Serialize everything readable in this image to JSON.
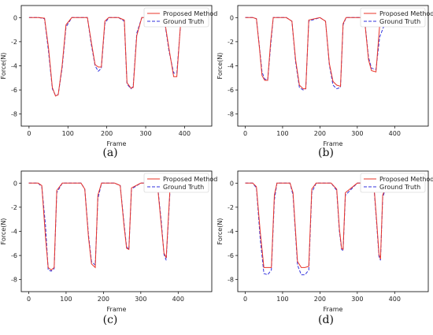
{
  "chart_data": [
    {
      "type": "line",
      "caption": "(a)",
      "xlabel": "Frame",
      "ylabel": "Force(N)",
      "xlim": [
        -20,
        470
      ],
      "ylim": [
        -9,
        1
      ],
      "xticks": [
        0,
        100,
        200,
        300,
        400
      ],
      "yticks": [
        0,
        -2,
        -4,
        -6,
        -8
      ],
      "legend": "top-right",
      "series": [
        {
          "name": "Proposed Method",
          "color": "#e8342a",
          "dash": false,
          "x": [
            0,
            25,
            40,
            50,
            60,
            68,
            75,
            85,
            95,
            110,
            130,
            150,
            160,
            170,
            178,
            186,
            195,
            205,
            230,
            245,
            252,
            262,
            268,
            277,
            290,
            310,
            330,
            350,
            360,
            372,
            380,
            390,
            420,
            450
          ],
          "y": [
            0,
            0,
            -0.05,
            -2.5,
            -5.8,
            -6.5,
            -6.4,
            -4,
            -0.6,
            0,
            0,
            0,
            -2.0,
            -3.9,
            -4.1,
            -4.1,
            -0.3,
            0,
            0,
            -0.2,
            -5.4,
            -5.85,
            -5.8,
            -1.5,
            0,
            0,
            0,
            -0.5,
            -2.6,
            -4.9,
            -4.9,
            -0.4,
            0,
            0
          ]
        },
        {
          "name": "Ground Truth",
          "color": "#3333dd",
          "dash": true,
          "x": [
            0,
            25,
            40,
            50,
            60,
            68,
            75,
            85,
            95,
            110,
            130,
            150,
            160,
            170,
            178,
            186,
            195,
            205,
            230,
            245,
            252,
            262,
            268,
            277,
            290,
            310,
            330,
            350,
            360,
            372,
            380,
            390,
            420,
            450
          ],
          "y": [
            0,
            0,
            -0.1,
            -2.8,
            -5.9,
            -6.45,
            -6.4,
            -4.2,
            -0.8,
            0,
            0,
            0,
            -2.2,
            -4.0,
            -4.45,
            -4.2,
            -0.5,
            0,
            0,
            -0.3,
            -5.5,
            -5.9,
            -5.7,
            -1.3,
            0,
            0,
            0,
            -0.6,
            -2.8,
            -4.6,
            -4.6,
            -0.5,
            0,
            0
          ]
        }
      ]
    },
    {
      "type": "line",
      "caption": "(b)",
      "xlabel": "Frame",
      "ylabel": "Force(N)",
      "xlim": [
        -20,
        490
      ],
      "ylim": [
        -9,
        1
      ],
      "xticks": [
        0,
        100,
        200,
        300,
        400
      ],
      "yticks": [
        0,
        -2,
        -4,
        -6,
        -8
      ],
      "legend": "top-right",
      "series": [
        {
          "name": "Proposed Method",
          "color": "#e8342a",
          "dash": false,
          "x": [
            0,
            20,
            30,
            38,
            45,
            52,
            60,
            68,
            75,
            90,
            110,
            125,
            135,
            145,
            155,
            162,
            170,
            200,
            215,
            225,
            235,
            245,
            255,
            262,
            270,
            290,
            310,
            320,
            330,
            338,
            350,
            360,
            380,
            420,
            470
          ],
          "y": [
            0,
            0,
            -0.1,
            -2.5,
            -4.8,
            -5.2,
            -5.2,
            -2.0,
            0,
            0,
            0,
            -0.3,
            -3.5,
            -5.6,
            -5.9,
            -5.9,
            -0.2,
            0,
            -0.3,
            -3.8,
            -5.3,
            -5.6,
            -5.7,
            -0.5,
            0,
            0,
            0,
            -0.3,
            -3.5,
            -4.4,
            -4.5,
            -0.6,
            0,
            0,
            0
          ]
        },
        {
          "name": "Ground Truth",
          "color": "#3333dd",
          "dash": true,
          "x": [
            0,
            20,
            30,
            38,
            45,
            52,
            60,
            68,
            75,
            90,
            110,
            125,
            135,
            145,
            155,
            162,
            170,
            200,
            215,
            225,
            235,
            245,
            255,
            262,
            270,
            290,
            310,
            320,
            330,
            338,
            350,
            360,
            380,
            420,
            470
          ],
          "y": [
            0,
            0,
            -0.1,
            -2.4,
            -4.5,
            -5.1,
            -5.2,
            -2.3,
            0,
            0,
            0,
            -0.3,
            -3.7,
            -5.8,
            -6.0,
            -5.9,
            -0.3,
            0,
            -0.3,
            -3.9,
            -5.6,
            -5.9,
            -5.8,
            -0.6,
            0,
            0,
            0,
            -0.3,
            -3.3,
            -4.2,
            -4.3,
            -1.6,
            0,
            0,
            0
          ]
        }
      ]
    },
    {
      "type": "line",
      "caption": "(c)",
      "xlabel": "Frame",
      "ylabel": "Force(N)",
      "xlim": [
        -20,
        490
      ],
      "ylim": [
        -9,
        1
      ],
      "xticks": [
        0,
        100,
        200,
        300,
        400
      ],
      "yticks": [
        0,
        -2,
        -4,
        -6,
        -8
      ],
      "legend": "top-right",
      "series": [
        {
          "name": "Proposed Method",
          "color": "#e8342a",
          "dash": false,
          "x": [
            0,
            25,
            35,
            45,
            52,
            60,
            68,
            75,
            90,
            120,
            140,
            150,
            160,
            168,
            178,
            185,
            195,
            230,
            245,
            255,
            262,
            268,
            275,
            300,
            330,
            345,
            355,
            362,
            368,
            378,
            400,
            470
          ],
          "y": [
            0,
            0,
            -0.2,
            -4.5,
            -7.0,
            -7.2,
            -7.0,
            -0.6,
            0,
            0,
            0,
            -0.5,
            -4.5,
            -6.7,
            -7.0,
            -1.0,
            0,
            0,
            -0.2,
            -3.5,
            -5.4,
            -5.5,
            -0.4,
            0,
            0,
            -0.3,
            -3.5,
            -5.8,
            -6.2,
            -0.5,
            0,
            0
          ]
        },
        {
          "name": "Ground Truth",
          "color": "#3333dd",
          "dash": true,
          "x": [
            0,
            25,
            35,
            45,
            52,
            60,
            68,
            75,
            90,
            120,
            140,
            150,
            160,
            168,
            178,
            185,
            195,
            230,
            245,
            255,
            262,
            268,
            275,
            300,
            330,
            345,
            355,
            362,
            368,
            378,
            400,
            470
          ],
          "y": [
            0,
            0,
            -0.3,
            -3.5,
            -7.2,
            -7.3,
            -7.1,
            -0.8,
            0,
            0,
            0,
            -0.5,
            -4.3,
            -6.5,
            -6.8,
            -1.3,
            0,
            0,
            -0.2,
            -3.3,
            -5.3,
            -5.5,
            -0.5,
            0,
            0,
            -0.2,
            -3.2,
            -5.9,
            -6.4,
            -0.7,
            0,
            0
          ]
        }
      ]
    },
    {
      "type": "line",
      "caption": "(d)",
      "xlabel": "Frame",
      "ylabel": "Force(N)",
      "xlim": [
        -20,
        490
      ],
      "ylim": [
        -9,
        1
      ],
      "xticks": [
        0,
        100,
        200,
        300,
        400
      ],
      "yticks": [
        0,
        -2,
        -4,
        -6,
        -8
      ],
      "legend": "top-right",
      "series": [
        {
          "name": "Proposed Method",
          "color": "#e8342a",
          "dash": false,
          "x": [
            0,
            20,
            30,
            40,
            50,
            60,
            70,
            78,
            85,
            95,
            120,
            128,
            140,
            150,
            160,
            170,
            178,
            190,
            230,
            245,
            252,
            258,
            262,
            268,
            300,
            330,
            345,
            352,
            358,
            362,
            368,
            380,
            470
          ],
          "y": [
            0,
            0,
            -0.3,
            -4.0,
            -7.0,
            -7.0,
            -7.0,
            -1.0,
            0,
            0,
            0,
            -0.8,
            -6.5,
            -7.0,
            -7.0,
            -6.9,
            -0.5,
            0,
            0,
            -0.5,
            -3.8,
            -5.4,
            -5.5,
            -0.8,
            0,
            0,
            -0.4,
            -3.2,
            -5.9,
            -6.3,
            -1.0,
            0,
            0
          ]
        },
        {
          "name": "Ground Truth",
          "color": "#3333dd",
          "dash": true,
          "x": [
            0,
            20,
            30,
            40,
            50,
            60,
            70,
            78,
            85,
            95,
            120,
            128,
            140,
            150,
            160,
            170,
            178,
            190,
            230,
            245,
            252,
            258,
            262,
            268,
            300,
            330,
            345,
            352,
            358,
            362,
            368,
            380,
            470
          ],
          "y": [
            0,
            0,
            -0.4,
            -4.6,
            -7.5,
            -7.6,
            -7.2,
            -1.4,
            0,
            0,
            0,
            -1.0,
            -6.8,
            -7.6,
            -7.6,
            -7.2,
            -0.8,
            0,
            0,
            -0.6,
            -4.0,
            -5.5,
            -5.6,
            -1.0,
            0,
            0,
            -0.5,
            -3.4,
            -6.1,
            -6.4,
            -1.2,
            0,
            0
          ]
        }
      ]
    }
  ]
}
